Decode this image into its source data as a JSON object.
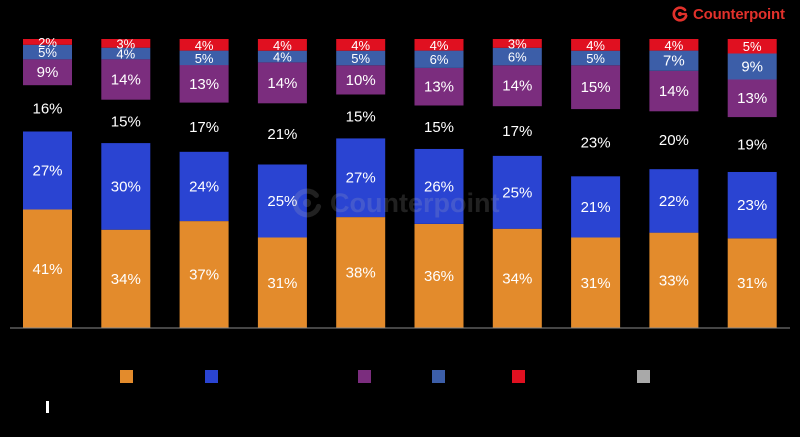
{
  "brand": {
    "name": "Counterpoint",
    "color": "#e2312b"
  },
  "watermark": {
    "text": "Counterpoint"
  },
  "chart_data": {
    "type": "bar",
    "stacked": true,
    "ylim": [
      0,
      100
    ],
    "grid": false,
    "legend_position": "bottom",
    "series": [
      {
        "color": "#e38b2c",
        "values": [
          41,
          34,
          37,
          31,
          38,
          36,
          34,
          31,
          33,
          31
        ]
      },
      {
        "color": "#2a44d2",
        "values": [
          27,
          30,
          24,
          25,
          27,
          26,
          25,
          21,
          22,
          23
        ]
      },
      {
        "color": "#000000",
        "values": [
          16,
          15,
          17,
          21,
          15,
          15,
          17,
          23,
          20,
          19
        ]
      },
      {
        "color": "#7b2d7e",
        "values": [
          9,
          14,
          13,
          14,
          10,
          13,
          14,
          15,
          14,
          13
        ]
      },
      {
        "color": "#3c5ea8",
        "values": [
          5,
          4,
          5,
          4,
          5,
          6,
          6,
          5,
          7,
          9
        ]
      },
      {
        "color": "#e01020",
        "values": [
          2,
          3,
          4,
          4,
          4,
          4,
          3,
          4,
          4,
          5
        ]
      },
      {
        "color": "#a9a9a9",
        "values": [
          0,
          0,
          0,
          0,
          0,
          0,
          0,
          0,
          0,
          0
        ]
      }
    ],
    "value_labels": [
      [
        "41%",
        "34%",
        "37%",
        "31%",
        "38%",
        "36%",
        "34%",
        "31%",
        "33%",
        "31%"
      ],
      [
        "27%",
        "30%",
        "24%",
        "25%",
        "27%",
        "26%",
        "25%",
        "21%",
        "22%",
        "23%"
      ],
      [
        "16%",
        "15%",
        "17%",
        "21%",
        "15%",
        "15%",
        "17%",
        "23%",
        "20%",
        "19%"
      ],
      [
        "9%",
        "14%",
        "13%",
        "14%",
        "10%",
        "13%",
        "14%",
        "15%",
        "14%",
        "13%"
      ],
      [
        "5%",
        "4%",
        "5%",
        "4%",
        "5%",
        "6%",
        "6%",
        "5%",
        "7%",
        "9%"
      ],
      [
        "2%",
        "3%",
        "4%",
        "4%",
        "4%",
        "4%",
        "3%",
        "4%",
        "4%",
        "5%"
      ],
      [
        "",
        "",
        "",
        "",
        "",
        "",
        "",
        "",
        "",
        ""
      ]
    ],
    "legend_series": [
      0,
      1,
      3,
      4,
      5,
      6
    ]
  }
}
